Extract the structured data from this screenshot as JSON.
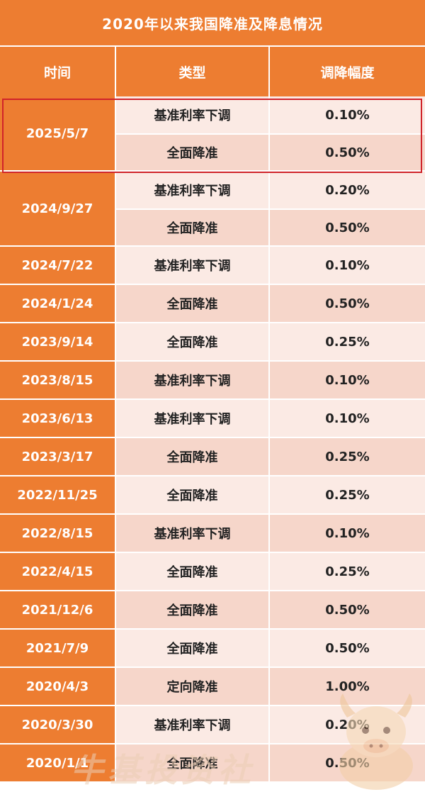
{
  "title": "2020年以来我国降准及降息情况",
  "headers": {
    "date": "时间",
    "type": "类型",
    "amount": "调降幅度"
  },
  "groups": [
    {
      "date": "2025/5/7",
      "highlighted": true,
      "rows": [
        {
          "type": "基准利率下调",
          "amount": "0.10%"
        },
        {
          "type": "全面降准",
          "amount": "0.50%"
        }
      ]
    },
    {
      "date": "2024/9/27",
      "rows": [
        {
          "type": "基准利率下调",
          "amount": "0.20%"
        },
        {
          "type": "全面降准",
          "amount": "0.50%"
        }
      ]
    },
    {
      "date": "2024/7/22",
      "rows": [
        {
          "type": "基准利率下调",
          "amount": "0.10%"
        }
      ]
    },
    {
      "date": "2024/1/24",
      "rows": [
        {
          "type": "全面降准",
          "amount": "0.50%"
        }
      ]
    },
    {
      "date": "2023/9/14",
      "rows": [
        {
          "type": "全面降准",
          "amount": "0.25%"
        }
      ]
    },
    {
      "date": "2023/8/15",
      "rows": [
        {
          "type": "基准利率下调",
          "amount": "0.10%"
        }
      ]
    },
    {
      "date": "2023/6/13",
      "rows": [
        {
          "type": "基准利率下调",
          "amount": "0.10%"
        }
      ]
    },
    {
      "date": "2023/3/17",
      "rows": [
        {
          "type": "全面降准",
          "amount": "0.25%"
        }
      ]
    },
    {
      "date": "2022/11/25",
      "rows": [
        {
          "type": "全面降准",
          "amount": "0.25%"
        }
      ]
    },
    {
      "date": "2022/8/15",
      "rows": [
        {
          "type": "基准利率下调",
          "amount": "0.10%"
        }
      ]
    },
    {
      "date": "2022/4/15",
      "rows": [
        {
          "type": "全面降准",
          "amount": "0.25%"
        }
      ]
    },
    {
      "date": "2021/12/6",
      "rows": [
        {
          "type": "全面降准",
          "amount": "0.50%"
        }
      ]
    },
    {
      "date": "2021/7/9",
      "rows": [
        {
          "type": "全面降准",
          "amount": "0.50%"
        }
      ]
    },
    {
      "date": "2020/4/3",
      "rows": [
        {
          "type": "定向降准",
          "amount": "1.00%"
        }
      ]
    },
    {
      "date": "2020/3/30",
      "rows": [
        {
          "type": "基准利率下调",
          "amount": "0.20%"
        }
      ]
    },
    {
      "date": "2020/1/1",
      "rows": [
        {
          "type": "全面降准",
          "amount": "0.50%"
        }
      ]
    }
  ],
  "watermark": "牛基投资社",
  "colors": {
    "header": "#ED7D31",
    "row_light": "#FBEAE4",
    "row_dark": "#F6D6CA",
    "highlight_border": "#D0242A"
  }
}
